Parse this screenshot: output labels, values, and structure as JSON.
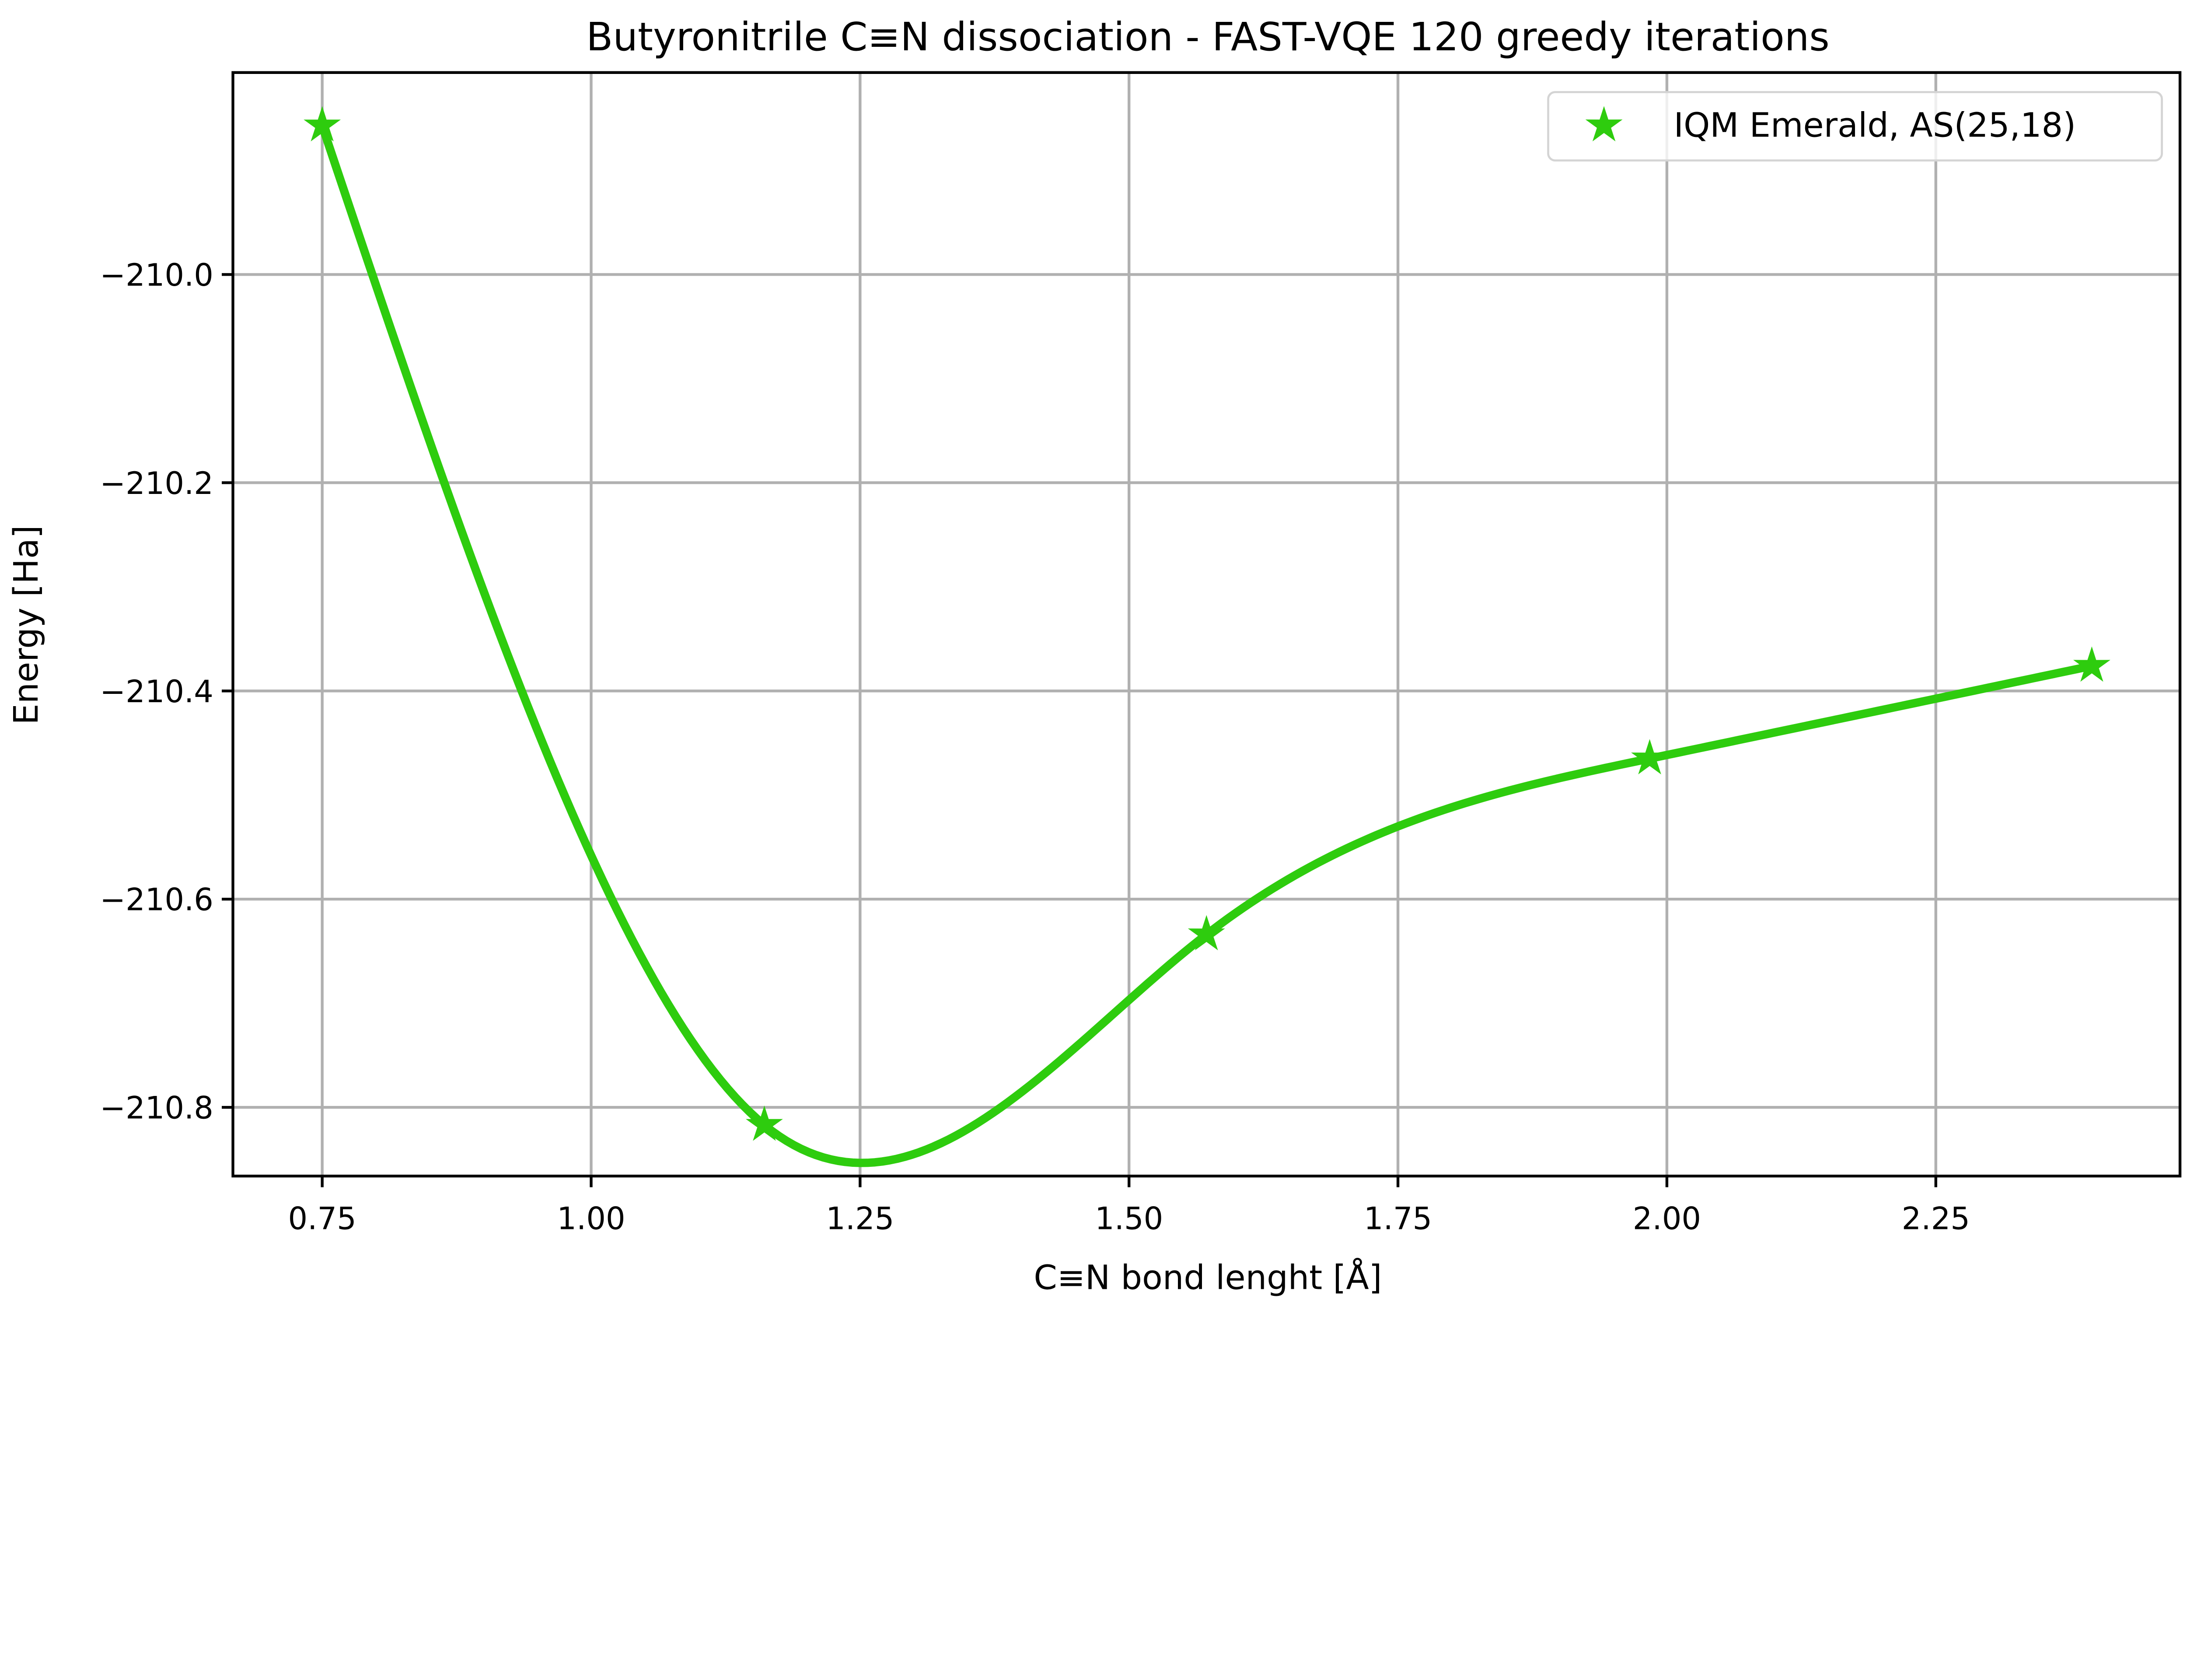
{
  "chart_data": {
    "type": "line",
    "title": "Butyronitrile C≡N dissociation - FAST-VQE 120 greedy iterations",
    "xlabel": "C≡N bond lenght [Å]",
    "ylabel": "Energy [Ha]",
    "xlim": [
      0.667,
      2.477
    ],
    "ylim": [
      -210.866,
      -209.806
    ],
    "xticks": [
      0.75,
      1.0,
      1.25,
      1.5,
      1.75,
      2.0,
      2.25
    ],
    "xtick_labels": [
      "0.75",
      "1.00",
      "1.25",
      "1.50",
      "1.75",
      "2.00",
      "2.25"
    ],
    "yticks": [
      -210.0,
      -210.2,
      -210.4,
      -210.6,
      -210.8
    ],
    "ytick_labels": [
      "−210.0",
      "−210.2",
      "−210.4",
      "−210.6",
      "−210.8"
    ],
    "grid": true,
    "legend_position": "top-right",
    "series": [
      {
        "name": "IQM Emerald, AS(25,18)",
        "marker": "star",
        "color": "#2ecc0e",
        "interpolation": "smooth spline",
        "x": [
          0.75,
          1.161,
          1.572,
          1.984,
          2.395
        ],
        "y": [
          -209.857,
          -210.817,
          -210.634,
          -210.465,
          -210.376
        ]
      }
    ]
  }
}
